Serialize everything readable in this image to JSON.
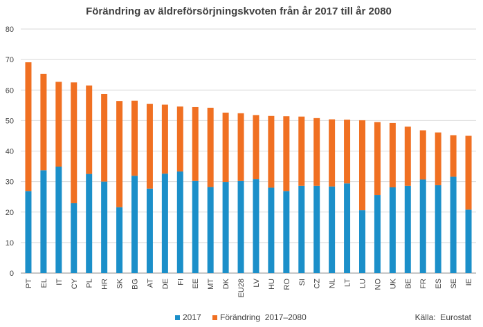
{
  "chart_data": {
    "type": "bar",
    "stacked": true,
    "title": "Förändring  av äldreförsörjningskvoten  från år 2017 till år 2080",
    "xlabel": "",
    "ylabel": "",
    "ylim": [
      0,
      80
    ],
    "yticks": [
      0,
      10,
      20,
      30,
      40,
      50,
      60,
      70,
      80
    ],
    "grid": true,
    "legend_position": "bottom",
    "categories": [
      "PT",
      "EL",
      "IT",
      "CY",
      "PL",
      "HR",
      "SK",
      "BG",
      "AT",
      "DE",
      "FI",
      "EE",
      "MT",
      "DK",
      "EU28",
      "LV",
      "HU",
      "RO",
      "SI",
      "CZ",
      "NL",
      "LT",
      "LU",
      "NO",
      "UK",
      "BE",
      "FR",
      "ES",
      "SE",
      "IE"
    ],
    "series": [
      {
        "name": "2017",
        "color": "#1b8fc9",
        "values": [
          26.9,
          33.7,
          34.9,
          22.9,
          32.5,
          30.0,
          21.6,
          31.9,
          27.7,
          32.6,
          33.3,
          30.2,
          28.2,
          29.9,
          30.2,
          30.8,
          28.0,
          26.9,
          28.6,
          28.6,
          28.4,
          29.4,
          20.6,
          25.6,
          28.1,
          28.6,
          30.7,
          28.8,
          31.6,
          20.8
        ]
      },
      {
        "name": "Förändring  2017–2080",
        "color": "#f07022",
        "values": [
          42.2,
          31.6,
          27.8,
          39.6,
          29.0,
          28.7,
          34.8,
          24.6,
          27.8,
          22.6,
          21.3,
          24.2,
          26.0,
          22.7,
          22.2,
          21.0,
          23.5,
          24.5,
          22.7,
          22.2,
          22.0,
          20.9,
          29.5,
          23.9,
          21.1,
          19.4,
          16.1,
          17.3,
          13.6,
          24.2
        ]
      }
    ],
    "source": "Källa:  Eurostat"
  }
}
